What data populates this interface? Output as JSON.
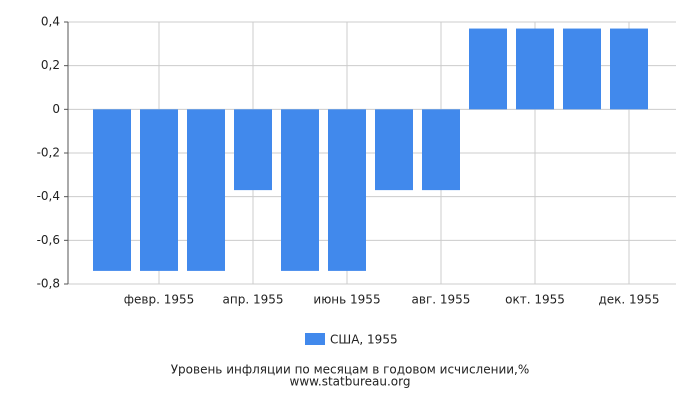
{
  "chart_data": {
    "type": "bar",
    "title": "Уровень инфляции по месяцам в годовом исчислении,%",
    "source": "www.statbureau.org",
    "categories": [
      null,
      "февр. 1955",
      null,
      "апр. 1955",
      null,
      "июнь 1955",
      null,
      "авг. 1955",
      null,
      "окт. 1955",
      null,
      "дек. 1955"
    ],
    "series": [
      {
        "name": "США, 1955",
        "color": "#4189ec",
        "values": [
          -0.74,
          -0.74,
          -0.74,
          -0.37,
          -0.74,
          -0.74,
          -0.37,
          -0.37,
          0.37,
          0.37,
          0.37,
          0.37
        ]
      }
    ],
    "ylim": [
      -0.8,
      0.4
    ],
    "yticks": [
      {
        "value": -0.8,
        "label": "-0,8"
      },
      {
        "value": -0.6,
        "label": "-0,6"
      },
      {
        "value": -0.4,
        "label": "-0,4"
      },
      {
        "value": -0.2,
        "label": "-0,2"
      },
      0,
      {
        "value": 0.2,
        "label": "0,2"
      },
      {
        "value": 0.4,
        "label": "0,4"
      }
    ],
    "grid": true
  }
}
